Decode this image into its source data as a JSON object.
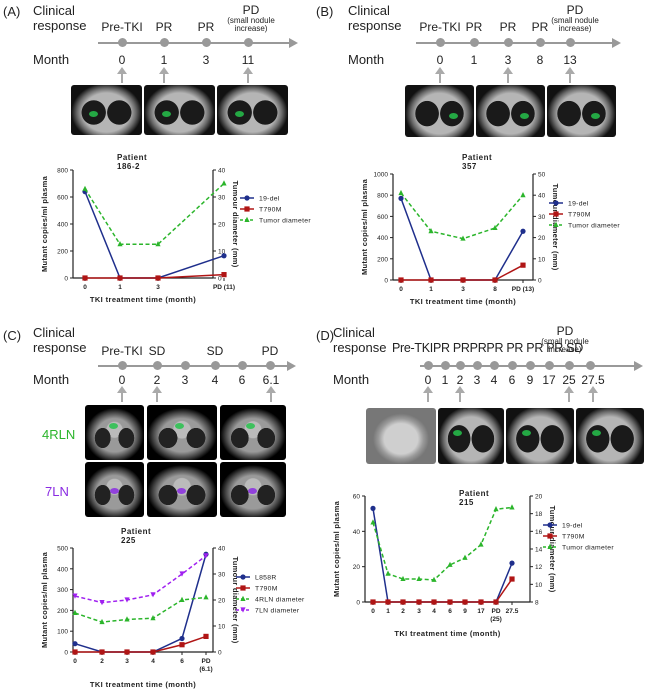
{
  "panels": {
    "A": {
      "label": "(A)",
      "header_line1": "Clinical",
      "header_line2": "response",
      "month_label": "Month",
      "responses": [
        {
          "label": "Pre-TKI",
          "sub": ""
        },
        {
          "label": "PR",
          "sub": ""
        },
        {
          "label": "PR",
          "sub": ""
        },
        {
          "label": "PD",
          "sub": "(small nodule increase)"
        }
      ],
      "months": [
        "0",
        "1",
        "3",
        "11"
      ],
      "patient": "Patient 186-2"
    },
    "B": {
      "label": "(B)",
      "header_line1": "Clinical",
      "header_line2": "response",
      "month_label": "Month",
      "responses": [
        {
          "label": "Pre-TKI",
          "sub": ""
        },
        {
          "label": "PR",
          "sub": ""
        },
        {
          "label": "PR",
          "sub": ""
        },
        {
          "label": "PR",
          "sub": ""
        },
        {
          "label": "PD",
          "sub": "(small nodule increase)"
        }
      ],
      "months": [
        "0",
        "1",
        "3",
        "8",
        "13"
      ],
      "patient": "Patient 357"
    },
    "C": {
      "label": "(C)",
      "header_line1": "Clinical",
      "header_line2": "response",
      "month_label": "Month",
      "responses": [
        {
          "label": "Pre-TKI",
          "sub": ""
        },
        {
          "label": "SD",
          "sub": ""
        },
        {
          "label": "SD",
          "sub": ""
        },
        {
          "label": "PD",
          "sub": ""
        }
      ],
      "months": [
        "0",
        "2",
        "3",
        "4",
        "6",
        "6.1"
      ],
      "row_label_1": "4RLN",
      "row_label_2": "7LN",
      "patient": "Patient 225"
    },
    "D": {
      "label": "(D)",
      "header_line1": "Clinical",
      "header_line2": "response",
      "month_label": "Month",
      "response_text": "Pre-TKIPR PRPRPR PR PR PR SD",
      "pd_label": "PD",
      "pd_sub": "(small nodule increase)",
      "months": [
        "0",
        "1",
        "2",
        "3",
        "4",
        "6",
        "9",
        "17",
        "25",
        "27.5"
      ],
      "patient": "Patient 215"
    }
  },
  "colors": {
    "blue": "#1f2f8c",
    "red": "#b01515",
    "green": "#2bb52b",
    "purple": "#a020f0",
    "axis": "#222222"
  },
  "chart_data": [
    {
      "id": "A",
      "type": "line",
      "title": "",
      "x": [
        0,
        1,
        3,
        11
      ],
      "categories": [
        "0",
        "1",
        "3",
        "PD (11)"
      ],
      "xlabel": "TKI treatment time (month)",
      "ylabel": "Mutant copies/ml plasma",
      "ylabel_right": "Tumour diameter (mm)",
      "ylim": [
        0,
        800
      ],
      "yticks": [
        0,
        200,
        400,
        600,
        800
      ],
      "ylim_right": [
        0,
        40
      ],
      "yticks_right": [
        0,
        10,
        20,
        30,
        40
      ],
      "series": [
        {
          "name": "19-del",
          "axis": "left",
          "color": "blue",
          "marker": "circle",
          "dash": false,
          "values": [
            640,
            0,
            0,
            165
          ]
        },
        {
          "name": "T790M",
          "axis": "left",
          "color": "red",
          "marker": "square",
          "dash": false,
          "values": [
            0,
            0,
            0,
            25
          ]
        },
        {
          "name": "Tumor diameter",
          "axis": "right",
          "color": "green",
          "marker": "triangle",
          "dash": true,
          "values": [
            33,
            12.5,
            12.5,
            35
          ]
        }
      ]
    },
    {
      "id": "B",
      "type": "line",
      "title": "",
      "x": [
        0,
        1,
        3,
        8,
        13
      ],
      "categories": [
        "0",
        "1",
        "3",
        "8",
        "PD (13)"
      ],
      "xlabel": "TKI treatment time (month)",
      "ylabel": "Mutant copies/ml plasma",
      "ylabel_right": "Tumour diameter (mm)",
      "ylim": [
        0,
        1000
      ],
      "yticks": [
        0,
        200,
        400,
        600,
        800,
        1000
      ],
      "ylim_right": [
        0,
        50
      ],
      "yticks_right": [
        0,
        10,
        20,
        30,
        40,
        50
      ],
      "series": [
        {
          "name": "19-del",
          "axis": "left",
          "color": "blue",
          "marker": "circle",
          "dash": false,
          "values": [
            770,
            0,
            0,
            0,
            460
          ]
        },
        {
          "name": "T790M",
          "axis": "left",
          "color": "red",
          "marker": "square",
          "dash": false,
          "values": [
            0,
            0,
            0,
            0,
            140
          ]
        },
        {
          "name": "Tumor diameter",
          "axis": "right",
          "color": "green",
          "marker": "triangle",
          "dash": true,
          "values": [
            41,
            23,
            19.5,
            24.5,
            40
          ]
        }
      ]
    },
    {
      "id": "C",
      "type": "line",
      "title": "",
      "x": [
        0,
        2,
        3,
        4,
        6,
        6.1
      ],
      "categories": [
        "0",
        "2",
        "3",
        "4",
        "6",
        "PD (6.1)"
      ],
      "xlabel": "TKI treatment time (month)",
      "ylabel": "Mutant copies/ml plasma",
      "ylabel_right": "Tumour diameter (mm)",
      "ylim": [
        0,
        500
      ],
      "yticks": [
        0,
        100,
        200,
        300,
        400,
        500
      ],
      "ylim_right": [
        0,
        40
      ],
      "yticks_right": [
        0,
        10,
        20,
        30,
        40
      ],
      "series": [
        {
          "name": "L858R",
          "axis": "left",
          "color": "blue",
          "marker": "circle",
          "dash": false,
          "values": [
            40,
            0,
            0,
            0,
            65,
            470
          ]
        },
        {
          "name": "T790M",
          "axis": "left",
          "color": "red",
          "marker": "square",
          "dash": false,
          "values": [
            0,
            0,
            0,
            0,
            35,
            75
          ]
        },
        {
          "name": "4RLN diameter",
          "axis": "right",
          "color": "green",
          "marker": "triangle",
          "dash": true,
          "values": [
            15,
            11.5,
            12.5,
            13,
            20,
            21
          ]
        },
        {
          "name": "7LN diameter",
          "axis": "right",
          "color": "purple",
          "marker": "triangle-down",
          "dash": true,
          "values": [
            21.5,
            19,
            20,
            22,
            30,
            37
          ]
        }
      ]
    },
    {
      "id": "D",
      "type": "line",
      "title": "",
      "x": [
        0,
        1,
        2,
        3,
        4,
        6,
        9,
        17,
        25,
        27.5
      ],
      "categories": [
        "0",
        "1",
        "2",
        "3",
        "4",
        "6",
        "9",
        "17",
        "PD (25)",
        "27.5"
      ],
      "xlabel": "TKI treatment time (month)",
      "ylabel": "Mutant copies/ml plasma",
      "ylabel_right": "Tumour diameter (mm)",
      "ylim": [
        0,
        60
      ],
      "yticks": [
        0,
        20,
        40,
        60
      ],
      "ylim_right": [
        8,
        20
      ],
      "yticks_right": [
        8,
        10,
        12,
        14,
        16,
        18,
        20
      ],
      "series": [
        {
          "name": "19-del",
          "axis": "left",
          "color": "blue",
          "marker": "circle",
          "dash": false,
          "values": [
            53,
            0,
            0,
            0,
            0,
            0,
            0,
            0,
            0,
            22
          ]
        },
        {
          "name": "T790M",
          "axis": "left",
          "color": "red",
          "marker": "square",
          "dash": false,
          "values": [
            0,
            0,
            0,
            0,
            0,
            0,
            0,
            0,
            0,
            13
          ]
        },
        {
          "name": "Tumor diameter",
          "axis": "right",
          "color": "green",
          "marker": "triangle",
          "dash": true,
          "values": [
            17,
            11.2,
            10.6,
            10.6,
            10.5,
            12.2,
            13,
            14.5,
            18.5,
            18.7
          ]
        }
      ]
    }
  ]
}
